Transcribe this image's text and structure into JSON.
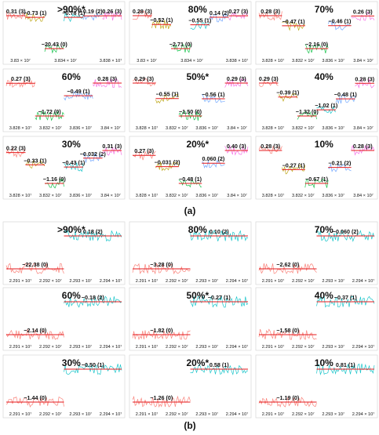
{
  "figure": {
    "panel_a_label": "(a)",
    "panel_b_label": "(b)"
  },
  "styles": {
    "segment_colors": [
      "#f8766d",
      "#b79f00",
      "#00ba38",
      "#00bfc4",
      "#619cff",
      "#f564e3"
    ],
    "mean_line_color": "#e41a1c",
    "frame_color": "#d0d0d0",
    "text_color": "#111111"
  },
  "chart_data": [
    {
      "type": "line",
      "panel": "a",
      "title": ">90%*",
      "xticks": [
        "3.83 × 10⁷",
        "3.834 × 10⁷",
        "3.838 × 10⁷"
      ],
      "segments": [
        {
          "label": "0.31 (3)",
          "value": 0.31
        },
        {
          "label": "−0.73 (1)",
          "value": -0.73
        },
        {
          "label": "−20.43 (0)",
          "value": -20.43
        },
        {
          "label": "−0.76 (1)",
          "value": -0.76
        },
        {
          "label": "0.19 (2)",
          "value": 0.19
        },
        {
          "label": "0.26 (3)",
          "value": 0.26
        }
      ]
    },
    {
      "type": "line",
      "panel": "a",
      "title": "80%",
      "xticks": [
        "3.83 × 10⁷",
        "3.834 × 10⁷",
        "3.838 × 10⁷"
      ],
      "segments": [
        {
          "label": "0.28 (3)",
          "value": 0.28
        },
        {
          "label": "−0.52 (1)",
          "value": -0.52
        },
        {
          "label": "−2.71 (0)",
          "value": -2.71
        },
        {
          "label": "−0.55 (1)",
          "value": -0.55
        },
        {
          "label": "0.14 (2)",
          "value": 0.14
        },
        {
          "label": "0.27 (3)",
          "value": 0.27
        }
      ]
    },
    {
      "type": "line",
      "panel": "a",
      "title": "70%",
      "xticks": [
        "3.828 × 10⁷",
        "3.832 × 10⁷",
        "3.836 × 10⁷",
        "3.84 × 10⁷"
      ],
      "segments": [
        {
          "label": "0.28 (3)",
          "value": 0.28
        },
        {
          "label": "−0.47 (1)",
          "value": -0.47
        },
        {
          "label": "−2.16 (0)",
          "value": -2.16
        },
        {
          "label": "−0.46 (1)",
          "value": -0.46
        },
        {
          "label": "0.26 (3)",
          "value": 0.26
        }
      ]
    },
    {
      "type": "line",
      "panel": "a",
      "title": "60%",
      "xticks": [
        "3.828 × 10⁷",
        "3.832 × 10⁷",
        "3.836 × 10⁷",
        "3.84 × 10⁷"
      ],
      "segments": [
        {
          "label": "0.27 (3)",
          "value": 0.27
        },
        {
          "label": "−1.72 (0)",
          "value": -1.72
        },
        {
          "label": "−0.49 (1)",
          "value": -0.49
        },
        {
          "label": "0.28 (3)",
          "value": 0.28
        }
      ]
    },
    {
      "type": "line",
      "panel": "a",
      "title": "50%*",
      "xticks": [
        "3.828 × 10⁷",
        "3.832 × 10⁷",
        "3.836 × 10⁷",
        "3.84 × 10⁷"
      ],
      "segments": [
        {
          "label": "0.29 (3)",
          "value": 0.29
        },
        {
          "label": "−0.55 (1)",
          "value": -0.55
        },
        {
          "label": "−1.50 (0)",
          "value": -1.5
        },
        {
          "label": "−0.56 (1)",
          "value": -0.56
        },
        {
          "label": "0.29 (3)",
          "value": 0.29
        }
      ]
    },
    {
      "type": "line",
      "panel": "a",
      "title": "40%",
      "xticks": [
        "3.828 × 10⁷",
        "3.832 × 10⁷",
        "3.836 × 10⁷",
        "3.84 × 10⁷"
      ],
      "segments": [
        {
          "label": "0.29 (3)",
          "value": 0.29
        },
        {
          "label": "−0.39 (1)",
          "value": -0.39
        },
        {
          "label": "−1.32 (0)",
          "value": -1.32
        },
        {
          "label": "−1.02 (1)",
          "value": -1.02
        },
        {
          "label": "−0.48 (1)",
          "value": -0.48
        },
        {
          "label": "0.28 (3)",
          "value": 0.28
        }
      ]
    },
    {
      "type": "line",
      "panel": "a",
      "title": "30%",
      "xticks": [
        "3.828 × 10⁷",
        "3.832 × 10⁷",
        "3.836 × 10⁷",
        "3.84 × 10⁷"
      ],
      "segments": [
        {
          "label": "0.22 (3)",
          "value": 0.22
        },
        {
          "label": "−0.33 (1)",
          "value": -0.33
        },
        {
          "label": "−1.16 (0)",
          "value": -1.16
        },
        {
          "label": "−0.43 (1)",
          "value": -0.43
        },
        {
          "label": "−0.032 (2)",
          "value": -0.032
        },
        {
          "label": "0.31 (3)",
          "value": 0.31
        }
      ]
    },
    {
      "type": "line",
      "panel": "a",
      "title": "20%*",
      "xticks": [
        "3.828 × 10⁷",
        "3.832 × 10⁷",
        "3.836 × 10⁷",
        "3.84 × 10⁷"
      ],
      "segments": [
        {
          "label": "0.27 (3)",
          "value": 0.27
        },
        {
          "label": "−0.031 (2)",
          "value": -0.031
        },
        {
          "label": "−0.48 (1)",
          "value": -0.48
        },
        {
          "label": "0.060 (2)",
          "value": 0.06
        },
        {
          "label": "0.40 (3)",
          "value": 0.4
        }
      ]
    },
    {
      "type": "line",
      "panel": "a",
      "title": "10%",
      "xticks": [
        "3.828 × 10⁷",
        "3.832 × 10⁷",
        "3.836 × 10⁷",
        "3.84 × 10⁷"
      ],
      "segments": [
        {
          "label": "0.28 (3)",
          "value": 0.28
        },
        {
          "label": "−0.27 (1)",
          "value": -0.27
        },
        {
          "label": "−0.67 (1)",
          "value": -0.67
        },
        {
          "label": "−0.21 (2)",
          "value": -0.21
        },
        {
          "label": "0.28 (3)",
          "value": 0.28
        }
      ]
    },
    {
      "type": "line",
      "panel": "b",
      "title": ">90%*",
      "xticks": [
        "2.291 × 10⁷",
        "2.292 × 10⁷",
        "2.293 × 10⁷",
        "2.294 × 10⁷"
      ],
      "segments": [
        {
          "label": "−22.38 (0)",
          "value": -22.38
        },
        {
          "label": "0.18 (2)",
          "value": 0.18
        }
      ]
    },
    {
      "type": "line",
      "panel": "b",
      "title": "80%",
      "xticks": [
        "2.291 × 10⁷",
        "2.292 × 10⁷",
        "2.293 × 10⁷",
        "2.294 × 10⁷"
      ],
      "segments": [
        {
          "label": "−3.28 (0)",
          "value": -3.28
        },
        {
          "label": "0.10 (2)",
          "value": 0.1
        }
      ]
    },
    {
      "type": "line",
      "panel": "b",
      "title": "70%",
      "xticks": [
        "2.291 × 10⁷",
        "2.292 × 10⁷",
        "2.293 × 10⁷",
        "2.294 × 10⁷"
      ],
      "segments": [
        {
          "label": "−2.62 (0)",
          "value": -2.62
        },
        {
          "label": "−0.060 (2)",
          "value": -0.06
        }
      ]
    },
    {
      "type": "line",
      "panel": "b",
      "title": "60%",
      "xticks": [
        "2.291 × 10⁷",
        "2.292 × 10⁷",
        "2.293 × 10⁷",
        "2.294 × 10⁷"
      ],
      "segments": [
        {
          "label": "−2.14 (0)",
          "value": -2.14
        },
        {
          "label": "−0.18 (2)",
          "value": -0.18
        }
      ]
    },
    {
      "type": "line",
      "panel": "b",
      "title": "50%*",
      "xticks": [
        "2.291 × 10⁷",
        "2.292 × 10⁷",
        "2.293 × 10⁷",
        "2.294 × 10⁷"
      ],
      "segments": [
        {
          "label": "−1.82 (0)",
          "value": -1.82
        },
        {
          "label": "−0.27 (1)",
          "value": -0.27
        }
      ]
    },
    {
      "type": "line",
      "panel": "b",
      "title": "40%",
      "xticks": [
        "2.291 × 10⁷",
        "2.292 × 10⁷",
        "2.293 × 10⁷",
        "2.294 × 10⁷"
      ],
      "segments": [
        {
          "label": "−1.58 (0)",
          "value": -1.58
        },
        {
          "label": "−0.37 (1)",
          "value": -0.37
        }
      ]
    },
    {
      "type": "line",
      "panel": "b",
      "title": "30%",
      "xticks": [
        "2.291 × 10⁷",
        "2.292 × 10⁷",
        "2.293 × 10⁷",
        "2.294 × 10⁷"
      ],
      "segments": [
        {
          "label": "−1.44 (0)",
          "value": -1.44
        },
        {
          "label": "−0.50 (1)",
          "value": -0.5
        }
      ]
    },
    {
      "type": "line",
      "panel": "b",
      "title": "20%*",
      "xticks": [
        "2.291 × 10⁷",
        "2.292 × 10⁷",
        "2.293 × 10⁷",
        "2.294 × 10⁷"
      ],
      "segments": [
        {
          "label": "−1.26 (0)",
          "value": -1.26
        },
        {
          "label": "0.58 (1)",
          "value": 0.58
        }
      ]
    },
    {
      "type": "line",
      "panel": "b",
      "title": "10%",
      "xticks": [
        "2.291 × 10⁷",
        "2.292 × 10⁷",
        "2.293 × 10⁷",
        "2.294 × 10⁷"
      ],
      "segments": [
        {
          "label": "−1.19 (0)",
          "value": -1.19
        },
        {
          "label": "0.81 (1)",
          "value": 0.81
        }
      ]
    }
  ]
}
